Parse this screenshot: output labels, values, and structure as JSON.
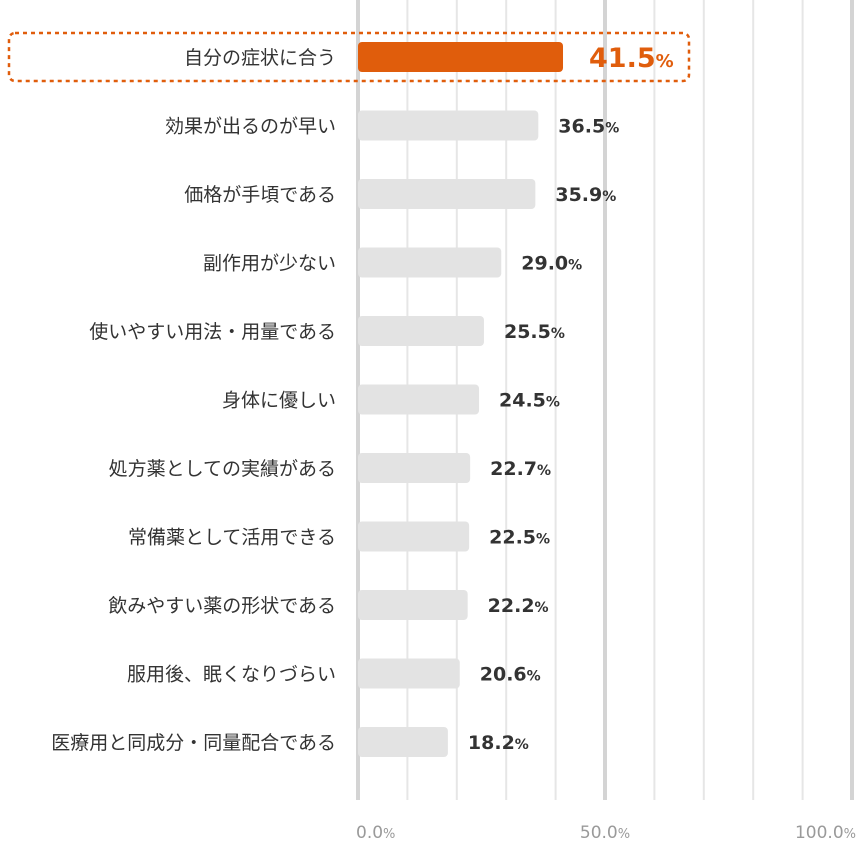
{
  "chart_data": {
    "type": "bar",
    "orientation": "horizontal",
    "categories": [
      "自分の症状に合う",
      "効果が出るのが早い",
      "価格が手頃である",
      "副作用が少ない",
      "使いやすい用法・用量である",
      "身体に優しい",
      "処方薬としての実績がある",
      "常備薬として活用できる",
      "飲みやすい薬の形状である",
      "服用後、眠くなりづらい",
      "医療用と同成分・同量配合である"
    ],
    "values": [
      41.5,
      36.5,
      35.9,
      29.0,
      25.5,
      24.5,
      22.7,
      22.5,
      22.2,
      20.6,
      18.2
    ],
    "unit": "%",
    "highlight_index": 0,
    "xlim": [
      0,
      100
    ],
    "ticks": [
      0,
      50,
      100
    ],
    "tick_labels": [
      "0.0",
      "50.0",
      "100.0"
    ],
    "grid": true,
    "colors": {
      "highlight": "#e05d0c",
      "bar": "#e3e3e3",
      "grid_light": "#e6e6e6",
      "grid_major": "#d4d4d4",
      "text": "#333333",
      "tick_text": "#9a9a9a"
    }
  }
}
